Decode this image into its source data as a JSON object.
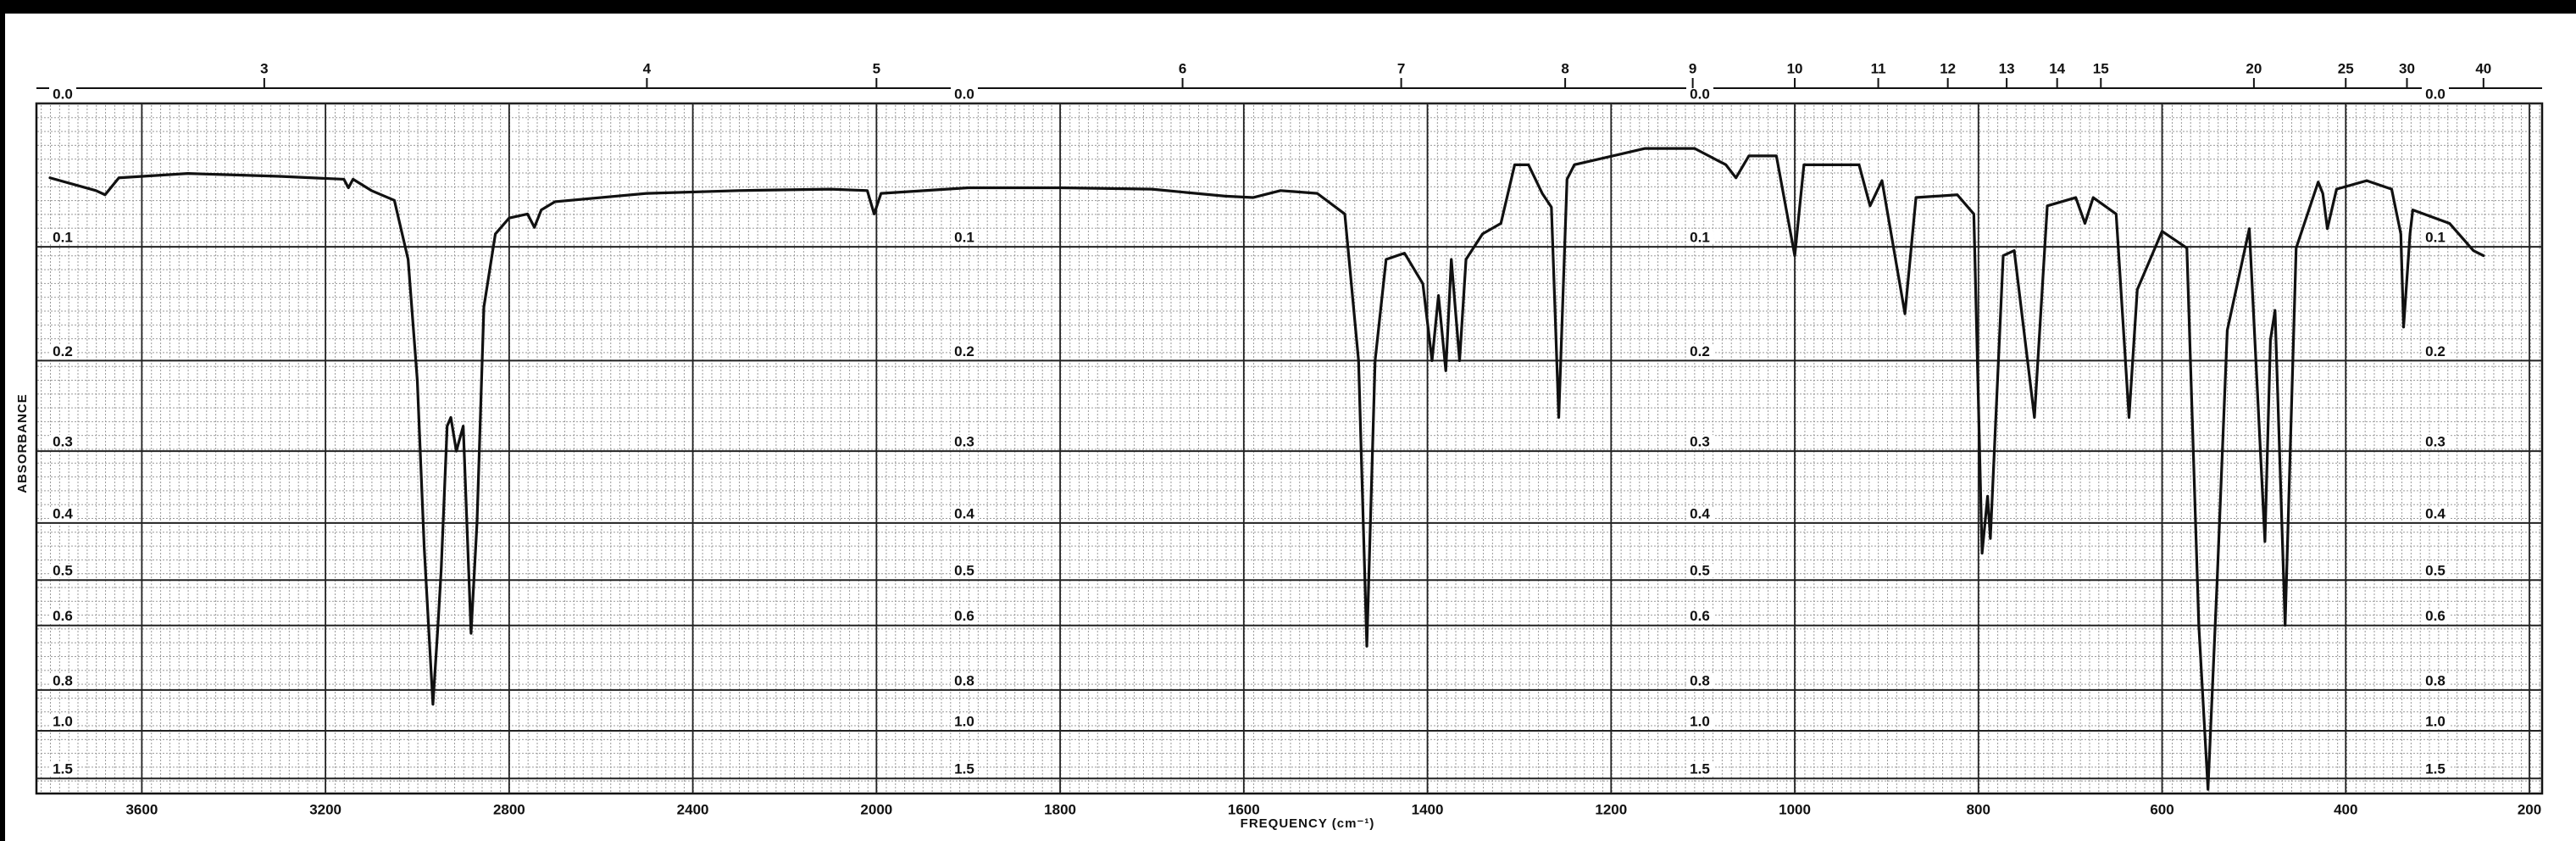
{
  "chart_data": {
    "type": "line",
    "x_label": "FREQUENCY (cm⁻¹)",
    "y_label": "ABSORBANCE",
    "xlim": [
      3800,
      200
    ],
    "x_scale_break": 2000,
    "xticks": [
      3600,
      3200,
      2800,
      2400,
      2000,
      1800,
      1600,
      1400,
      1200,
      1000,
      800,
      600,
      400,
      200
    ],
    "x2_axis": "wavelength_um",
    "x2ticks": [
      3,
      4,
      5,
      6,
      7,
      8,
      9,
      10,
      11,
      12,
      13,
      14,
      15,
      20,
      25,
      30,
      40
    ],
    "y_scale": "absorbance",
    "ylim": [
      0,
      2
    ],
    "yticks": [
      {
        "value": 0,
        "label": "0.0"
      },
      0.1,
      0.2,
      0.3,
      0.4,
      0.5,
      0.6,
      0.8,
      {
        "value": 1,
        "label": "1.0"
      },
      1.5
    ],
    "grid": true,
    "color": "#111111",
    "x": [
      3800,
      3700,
      3680,
      3650,
      3500,
      3300,
      3160,
      3150,
      3140,
      3100,
      3050,
      3020,
      3000,
      2985,
      2966,
      2955,
      2948,
      2935,
      2927,
      2915,
      2900,
      2883,
      2870,
      2855,
      2830,
      2800,
      2760,
      2745,
      2730,
      2700,
      2500,
      2300,
      2100,
      2020,
      2005,
      1995,
      1900,
      1800,
      1700,
      1620,
      1590,
      1560,
      1520,
      1490,
      1475,
      1466,
      1457,
      1445,
      1425,
      1405,
      1395,
      1388,
      1380,
      1374,
      1365,
      1358,
      1340,
      1320,
      1305,
      1290,
      1275,
      1265,
      1257,
      1248,
      1240,
      1163,
      1109,
      1075,
      1064,
      1050,
      1020,
      1000,
      990,
      930,
      918,
      905,
      880,
      868,
      823,
      805,
      796,
      790,
      787,
      773,
      761,
      739,
      725,
      694,
      684,
      675,
      650,
      636,
      627,
      600,
      573,
      560,
      550,
      540,
      529,
      505,
      488,
      482,
      477,
      466,
      454,
      430,
      425,
      420,
      410,
      377,
      350,
      340,
      337,
      330,
      327,
      287,
      261,
      250
    ],
    "values": [
      0.049,
      0.058,
      0.061,
      0.049,
      0.046,
      0.048,
      0.05,
      0.056,
      0.05,
      0.058,
      0.065,
      0.11,
      0.22,
      0.44,
      0.86,
      0.6,
      0.48,
      0.27,
      0.26,
      0.3,
      0.27,
      0.62,
      0.4,
      0.15,
      0.09,
      0.078,
      0.075,
      0.085,
      0.072,
      0.066,
      0.06,
      0.058,
      0.057,
      0.058,
      0.075,
      0.06,
      0.056,
      0.056,
      0.057,
      0.062,
      0.063,
      0.058,
      0.06,
      0.075,
      0.2,
      0.655,
      0.2,
      0.11,
      0.105,
      0.13,
      0.2,
      0.14,
      0.21,
      0.11,
      0.2,
      0.11,
      0.09,
      0.082,
      0.04,
      0.04,
      0.06,
      0.07,
      0.26,
      0.05,
      0.04,
      0.029,
      0.029,
      0.04,
      0.049,
      0.034,
      0.034,
      0.107,
      0.04,
      0.04,
      0.069,
      0.051,
      0.156,
      0.063,
      0.061,
      0.075,
      0.45,
      0.36,
      0.425,
      0.107,
      0.103,
      0.26,
      0.069,
      0.063,
      0.082,
      0.063,
      0.075,
      0.26,
      0.135,
      0.088,
      0.101,
      0.6,
      1.8,
      0.5,
      0.171,
      0.086,
      0.43,
      0.18,
      0.153,
      0.6,
      0.101,
      0.052,
      0.06,
      0.086,
      0.057,
      0.051,
      0.057,
      0.09,
      0.168,
      0.09,
      0.072,
      0.082,
      0.103,
      0.107
    ]
  }
}
